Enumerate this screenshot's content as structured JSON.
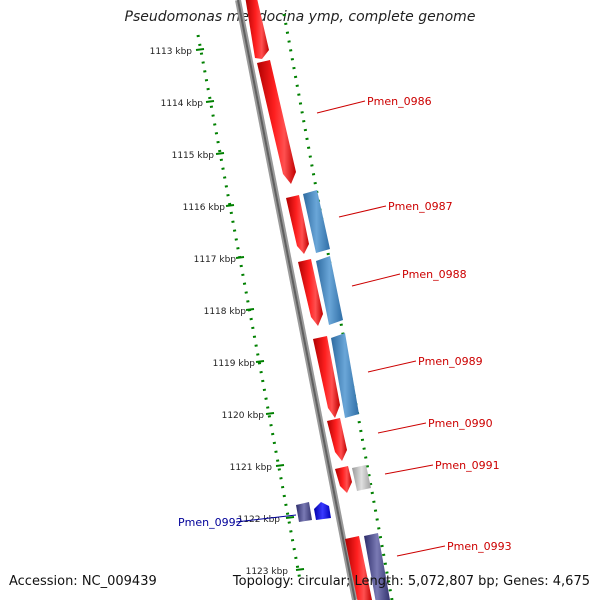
{
  "title": "Pseudomonas mendocina ymp, complete genome",
  "accession": "Accession: NC_009439",
  "summary": "Topology: circular; Length: 5,072,807 bp; Genes: 4,675",
  "scale_ticks": [
    {
      "label": "1113 kbp"
    },
    {
      "label": "1114 kbp"
    },
    {
      "label": "1115 kbp"
    },
    {
      "label": "1116 kbp"
    },
    {
      "label": "1117 kbp"
    },
    {
      "label": "1118 kbp"
    },
    {
      "label": "1119 kbp"
    },
    {
      "label": "1120 kbp"
    },
    {
      "label": "1121 kbp"
    },
    {
      "label": "1122 kbp"
    },
    {
      "label": "1123 kbp"
    }
  ],
  "gene_labels": [
    {
      "text": "Pmen_0986",
      "color": "#cc0000"
    },
    {
      "text": "Pmen_0987",
      "color": "#cc0000"
    },
    {
      "text": "Pmen_0988",
      "color": "#cc0000"
    },
    {
      "text": "Pmen_0989",
      "color": "#cc0000"
    },
    {
      "text": "Pmen_0990",
      "color": "#cc0000"
    },
    {
      "text": "Pmen_0991",
      "color": "#cc0000"
    },
    {
      "text": "Pmen_0992",
      "color": "#000099"
    },
    {
      "text": "Pmen_0993",
      "color": "#cc0000"
    }
  ],
  "colors": {
    "cds": "#ff0000",
    "cog_blue": "#4a8cc8",
    "cog_gray": "#bbbbbb",
    "cog_navy": "#4a4a8c",
    "rna": "#0000ff",
    "backbone": "#808080",
    "tick": "#008000"
  }
}
